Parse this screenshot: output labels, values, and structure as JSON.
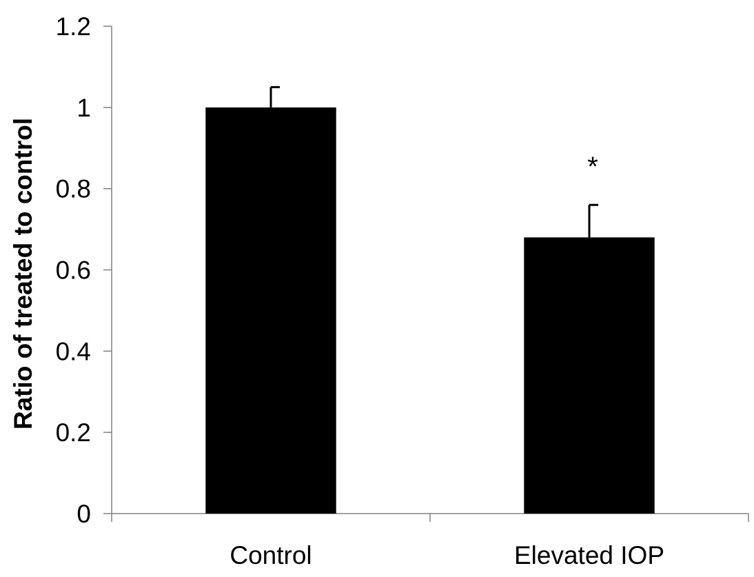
{
  "chart_data": {
    "type": "bar",
    "title": "",
    "xlabel": "",
    "ylabel": "Ratio of treated to control",
    "categories": [
      "Control",
      "Elevated IOP"
    ],
    "values": [
      1.0,
      0.68
    ],
    "error_bars": [
      0.05,
      0.08
    ],
    "annotations": [
      {
        "category": "Elevated IOP",
        "text": "*"
      }
    ],
    "ylim": [
      0,
      1.2
    ],
    "yticks": [
      "0",
      "0.2",
      "0.4",
      "0.6",
      "0.8",
      "1",
      "1.2"
    ],
    "ytick_values": [
      0,
      0.2,
      0.4,
      0.6,
      0.8,
      1.0,
      1.2
    ],
    "grid": false,
    "legend": "none",
    "bar_color": "#000000",
    "axis_color": "#808080"
  }
}
